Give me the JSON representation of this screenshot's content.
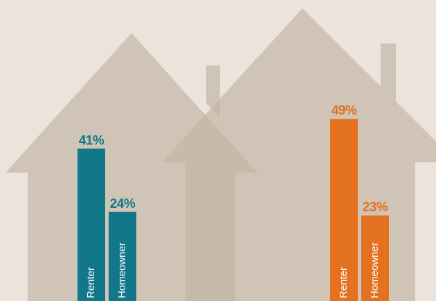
{
  "chart_data": {
    "type": "bar",
    "categories": [
      "Renter",
      "Homeowner"
    ],
    "series": [
      {
        "color": "#127889",
        "values": [
          41,
          24
        ],
        "value_labels": [
          "41%",
          "24%"
        ]
      },
      {
        "color": "#e4711f",
        "values": [
          49,
          23
        ],
        "value_labels": [
          "49%",
          "23%"
        ]
      }
    ],
    "ylim": [
      0,
      81
    ]
  }
}
